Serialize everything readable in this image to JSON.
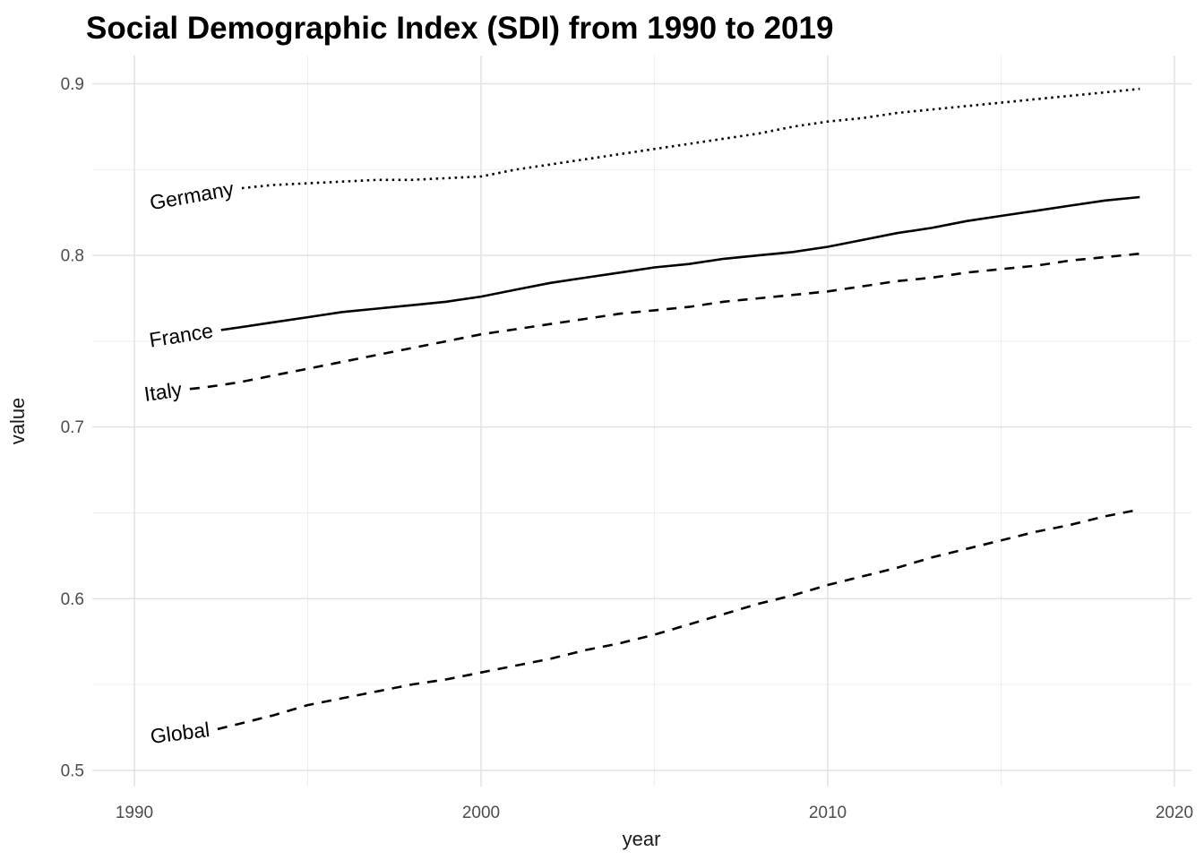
{
  "chart_data": {
    "type": "line",
    "title": "Social Demographic Index (SDI) from 1990 to 2019",
    "xlabel": "year",
    "ylabel": "value",
    "grid": true,
    "legend_position": "inline-line-labels",
    "background_color": "#ffffff",
    "line_color": "#000000",
    "grid_major_color": "#e2e2e2",
    "grid_minor_color": "#ececec",
    "tick_label_color": "#4d4d4d",
    "xlim": [
      1988.8,
      2020.5
    ],
    "ylim": [
      0.49,
      0.916
    ],
    "x_ticks": [
      {
        "value": 1990,
        "label": "1990"
      },
      {
        "value": 2000,
        "label": "2000"
      },
      {
        "value": 2010,
        "label": "2010"
      },
      {
        "value": 2020,
        "label": "2020"
      }
    ],
    "x_minor_ticks": [
      1995,
      2005,
      2015
    ],
    "y_ticks": [
      {
        "value": 0.5,
        "label": "0.5"
      },
      {
        "value": 0.6,
        "label": "0.6"
      },
      {
        "value": 0.7,
        "label": "0.7"
      },
      {
        "value": 0.8,
        "label": "0.8"
      },
      {
        "value": 0.9,
        "label": "0.9"
      }
    ],
    "y_minor_ticks": [
      0.55,
      0.65,
      0.75,
      0.85
    ],
    "x": [
      1990,
      1991,
      1992,
      1993,
      1994,
      1995,
      1996,
      1997,
      1998,
      1999,
      2000,
      2001,
      2002,
      2003,
      2004,
      2005,
      2006,
      2007,
      2008,
      2009,
      2010,
      2011,
      2012,
      2013,
      2014,
      2015,
      2016,
      2017,
      2018,
      2019
    ],
    "series": [
      {
        "name": "Germany",
        "linestyle": "dotted",
        "label_start_year": 1993.1,
        "label_angle": -10,
        "values": [
          0.836,
          0.837,
          0.838,
          0.839,
          0.841,
          0.842,
          0.843,
          0.844,
          0.844,
          0.845,
          0.846,
          0.85,
          0.853,
          0.856,
          0.859,
          0.862,
          0.865,
          0.868,
          0.871,
          0.875,
          0.878,
          0.88,
          0.883,
          0.885,
          0.887,
          0.889,
          0.891,
          0.893,
          0.895,
          0.897
        ]
      },
      {
        "name": "France",
        "linestyle": "solid",
        "label_start_year": 1992.5,
        "label_angle": -9,
        "values": [
          0.751,
          0.753,
          0.755,
          0.758,
          0.761,
          0.764,
          0.767,
          0.769,
          0.771,
          0.773,
          0.776,
          0.78,
          0.784,
          0.787,
          0.79,
          0.793,
          0.795,
          0.798,
          0.8,
          0.802,
          0.805,
          0.809,
          0.813,
          0.816,
          0.82,
          0.823,
          0.826,
          0.829,
          0.832,
          0.834
        ]
      },
      {
        "name": "Italy",
        "linestyle": "dashed",
        "label_start_year": 1991.6,
        "label_angle": -8,
        "values": [
          0.719,
          0.721,
          0.723,
          0.726,
          0.73,
          0.734,
          0.738,
          0.742,
          0.746,
          0.75,
          0.754,
          0.757,
          0.76,
          0.763,
          0.766,
          0.768,
          0.77,
          0.773,
          0.775,
          0.777,
          0.779,
          0.782,
          0.785,
          0.787,
          0.79,
          0.792,
          0.794,
          0.797,
          0.799,
          0.801
        ]
      },
      {
        "name": "Global",
        "linestyle": "dashed",
        "label_start_year": 1992.4,
        "label_angle": -7,
        "values": [
          0.512,
          0.517,
          0.522,
          0.527,
          0.532,
          0.538,
          0.542,
          0.546,
          0.55,
          0.553,
          0.557,
          0.561,
          0.565,
          0.57,
          0.574,
          0.579,
          0.585,
          0.591,
          0.597,
          0.602,
          0.608,
          0.613,
          0.618,
          0.624,
          0.629,
          0.634,
          0.639,
          0.643,
          0.648,
          0.652
        ]
      }
    ]
  }
}
